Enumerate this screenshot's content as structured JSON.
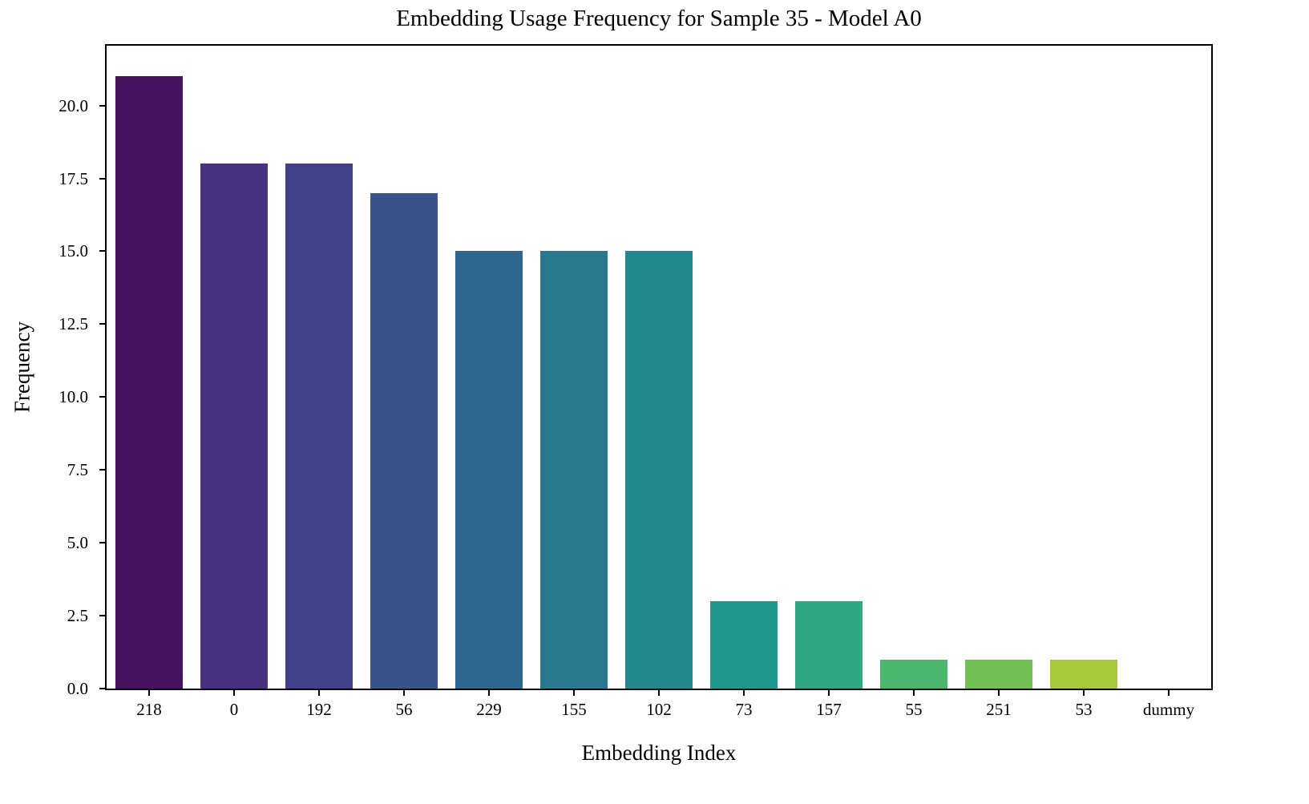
{
  "chart_data": {
    "type": "bar",
    "title": "Embedding Usage Frequency for Sample 35 - Model A0",
    "xlabel": "Embedding Index",
    "ylabel": "Frequency",
    "categories": [
      "218",
      "0",
      "192",
      "56",
      "229",
      "155",
      "102",
      "73",
      "157",
      "55",
      "251",
      "53",
      "dummy"
    ],
    "values": [
      21,
      18,
      18,
      17,
      15,
      15,
      15,
      3,
      3,
      1,
      1,
      1,
      0
    ],
    "bar_colors": [
      "#46115e",
      "#46327e",
      "#424086",
      "#39548b",
      "#2e688e",
      "#29788e",
      "#23888e",
      "#1f988a",
      "#2fa881",
      "#4cb56e",
      "#74c056",
      "#a8c93b",
      "#e2e22a"
    ],
    "ylim": [
      0,
      22.05
    ],
    "yticks": [
      0.0,
      2.5,
      5.0,
      7.5,
      10.0,
      12.5,
      15.0,
      17.5,
      20.0
    ],
    "ytick_labels": [
      "0.0",
      "2.5",
      "5.0",
      "7.5",
      "10.0",
      "12.5",
      "15.0",
      "17.5",
      "20.0"
    ],
    "bar_width_fraction": 0.8,
    "grid": false,
    "legend": null,
    "spine_color": "#000000",
    "background_color": "#ffffff"
  }
}
